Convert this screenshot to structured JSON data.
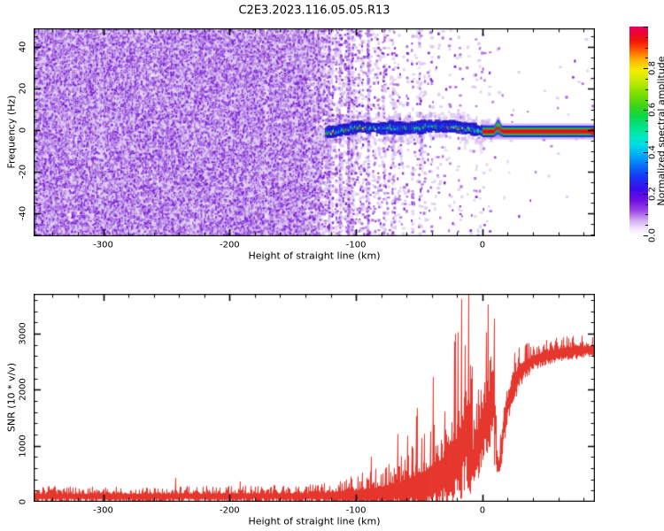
{
  "title": "C2E3.2023.116.05.05.R13",
  "chart_data": [
    {
      "type": "heatmap",
      "title": "C2E3.2023.116.05.05.R13",
      "xlabel": "Height of straight line (km)",
      "ylabel": "Frequency (Hz)",
      "xlim": [
        -355,
        89
      ],
      "ylim": [
        -51,
        49
      ],
      "x_major_ticks": [
        -300,
        -200,
        -100,
        0
      ],
      "x_minor_step": 20,
      "y_major_ticks": [
        40,
        20,
        0,
        -20,
        -40
      ],
      "y_minor_step": 5,
      "grid": false,
      "colorbar": {
        "label": "Normalized spectral amplitude",
        "range": [
          0.0,
          1.0
        ],
        "tick_labels": [
          "0.0",
          "0.2",
          "0.4",
          "0.6",
          "0.8"
        ],
        "tick_values": [
          0.0,
          0.2,
          0.4,
          0.6,
          0.8
        ],
        "minor_step": 0.05,
        "gradient_stops": [
          [
            0.0,
            "#ffffff"
          ],
          [
            0.03,
            "#f2e8fb"
          ],
          [
            0.07,
            "#d4aef2"
          ],
          [
            0.12,
            "#9b42e8"
          ],
          [
            0.17,
            "#6a0de0"
          ],
          [
            0.22,
            "#3c0bee"
          ],
          [
            0.28,
            "#1836f4"
          ],
          [
            0.33,
            "#0a6cfa"
          ],
          [
            0.38,
            "#00a8f8"
          ],
          [
            0.43,
            "#00d8e8"
          ],
          [
            0.47,
            "#00e8c0"
          ],
          [
            0.52,
            "#00e388"
          ],
          [
            0.57,
            "#0ad848"
          ],
          [
            0.62,
            "#3cd415"
          ],
          [
            0.68,
            "#7fe000"
          ],
          [
            0.74,
            "#c6ec00"
          ],
          [
            0.79,
            "#f2ee00"
          ],
          [
            0.84,
            "#ffb300"
          ],
          [
            0.89,
            "#ff5500"
          ],
          [
            0.93,
            "#f21505"
          ],
          [
            0.97,
            "#ee0033"
          ],
          [
            1.0,
            "#e50068"
          ]
        ]
      },
      "features": {
        "noise_field": {
          "x_start": -355,
          "dense_until": -150,
          "fade_until": -80,
          "sparse_until": -5,
          "description": "dense purple speckle noise over all frequencies at far heights, fading with vertical sparse streaks toward 0 km"
        },
        "echo_trace": {
          "x_start": -124,
          "x_end": 8,
          "center_freq": -0.6,
          "wander_hz": 2.5,
          "description": "wavy blue/cyan/green blobby echo band near 0 Hz with sporadic yellow/red hotspots"
        },
        "carrier_stripe": {
          "x_start": 0,
          "x_end": 89,
          "center_freq": -0.6,
          "layers_out_to_in": [
            "pale purple",
            "blue",
            "green",
            "red core"
          ],
          "bump_at_km": 12,
          "description": "flat narrow layered spectral line extending to right edge"
        }
      }
    },
    {
      "type": "line",
      "xlabel": "Height of straight line (km)",
      "ylabel": "SNR (10 * v/v)",
      "xlim": [
        -355,
        89
      ],
      "ylim": [
        0,
        3710
      ],
      "x_major_ticks": [
        -300,
        -200,
        -100,
        0
      ],
      "x_minor_step": 20,
      "y_major_ticks": [
        0,
        1000,
        2000,
        3000
      ],
      "y_minor_step": 200,
      "grid": false,
      "series": [
        {
          "name": "SNR",
          "color": "#e5372e",
          "envelope_x": [
            -355,
            -250,
            -150,
            -130,
            -100,
            -80,
            -60,
            -45,
            -30,
            -20,
            -14,
            -11,
            -8,
            -4,
            0,
            4,
            7,
            9,
            11,
            13,
            16,
            20,
            25,
            30,
            40,
            55,
            70,
            89
          ],
          "envelope_mean": [
            140,
            140,
            148,
            150,
            200,
            260,
            380,
            550,
            800,
            1100,
            1500,
            1900,
            900,
            1300,
            1600,
            1900,
            2100,
            2300,
            900,
            700,
            1400,
            1900,
            2250,
            2450,
            2600,
            2700,
            2750,
            2780
          ],
          "envelope_spread": [
            140,
            140,
            150,
            160,
            280,
            380,
            550,
            750,
            950,
            1100,
            1300,
            1800,
            800,
            900,
            1000,
            1000,
            1000,
            1000,
            400,
            300,
            500,
            450,
            450,
            350,
            250,
            220,
            210,
            200
          ],
          "spikes": [
            {
              "x": -11,
              "y": 3710
            },
            {
              "x": 9,
              "y": 3270
            }
          ]
        }
      ]
    }
  ]
}
